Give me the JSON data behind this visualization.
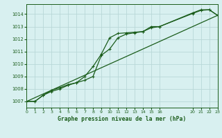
{
  "bg_color": "#d8f0f0",
  "grid_color": "#b8d8d8",
  "line_color": "#1a5c1a",
  "title": "Graphe pression niveau de la mer (hPa)",
  "xlim": [
    0,
    23
  ],
  "ylim": [
    1006.5,
    1014.8
  ],
  "yticks": [
    1007,
    1008,
    1009,
    1010,
    1011,
    1012,
    1013,
    1014
  ],
  "xtick_positions": [
    0,
    1,
    2,
    3,
    4,
    5,
    6,
    7,
    8,
    9,
    10,
    11,
    12,
    13,
    14,
    15,
    16,
    20,
    21,
    22,
    23
  ],
  "xtick_labels": [
    "0",
    "1",
    "2",
    "3",
    "4",
    "5",
    "6",
    "7",
    "8",
    "9",
    "10",
    "11",
    "12",
    "13",
    "14",
    "15",
    "16",
    "20",
    "21",
    "22",
    "23"
  ],
  "series1_x": [
    0,
    1,
    2,
    3,
    4,
    5,
    6,
    7,
    8,
    9,
    10,
    11,
    12,
    13,
    14,
    15,
    16,
    20,
    21,
    22,
    23
  ],
  "series1_y": [
    1007.0,
    1007.0,
    1007.5,
    1007.8,
    1008.0,
    1008.3,
    1008.5,
    1008.7,
    1009.0,
    1010.7,
    1011.2,
    1012.1,
    1012.4,
    1012.5,
    1012.6,
    1012.9,
    1013.0,
    1014.05,
    1014.3,
    1014.35,
    1013.9
  ],
  "series2_x": [
    0,
    1,
    2,
    3,
    4,
    5,
    6,
    7,
    8,
    9,
    10,
    11,
    12,
    13,
    14,
    15,
    16,
    20,
    21,
    22,
    23
  ],
  "series2_y": [
    1007.0,
    1007.0,
    1007.5,
    1007.9,
    1008.1,
    1008.35,
    1008.5,
    1009.0,
    1009.8,
    1010.8,
    1012.1,
    1012.45,
    1012.5,
    1012.55,
    1012.6,
    1013.0,
    1013.0,
    1014.1,
    1014.35,
    1014.35,
    1013.9
  ],
  "series3_x": [
    0,
    23
  ],
  "series3_y": [
    1007.0,
    1013.9
  ]
}
